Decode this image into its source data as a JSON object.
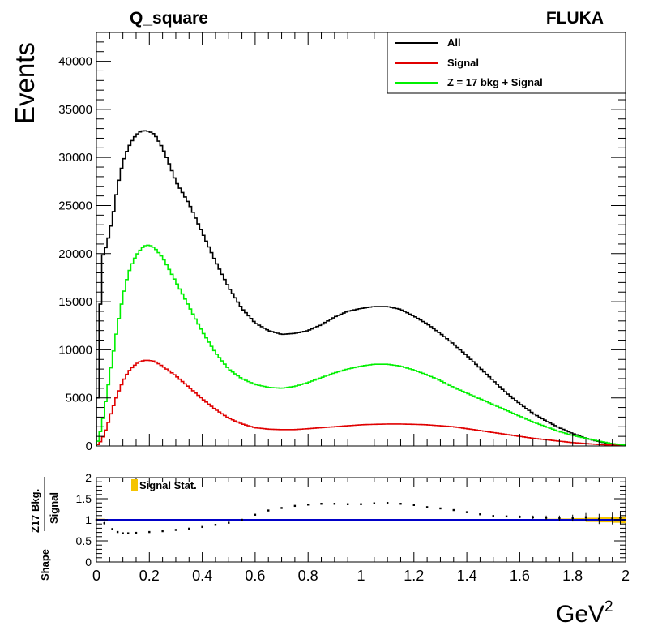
{
  "title": "Q_square",
  "generator_label": "FLUKA",
  "chart_data": [
    {
      "type": "line",
      "style": "step histogram",
      "xlabel": "GeV",
      "xlabel_superscript": "2",
      "ylabel": "Events",
      "xlim": [
        0,
        2
      ],
      "ylim": [
        0,
        43000
      ],
      "x_ticks": [
        0,
        0.2,
        0.4,
        0.6,
        0.8,
        1,
        1.2,
        1.4,
        1.6,
        1.8,
        2
      ],
      "x_tick_labels": [
        "0",
        "0.2",
        "0.4",
        "0.6",
        "0.8",
        "1",
        "1.2",
        "1.4",
        "1.6",
        "1.8",
        "2"
      ],
      "y_ticks": [
        0,
        5000,
        10000,
        15000,
        20000,
        25000,
        30000,
        35000,
        40000
      ],
      "y_tick_labels": [
        "0",
        "5000",
        "10000",
        "15000",
        "20000",
        "25000",
        "30000",
        "35000",
        "40000"
      ],
      "legend_position": "top-right",
      "grid": false,
      "series": [
        {
          "name": "All",
          "color": "#000000",
          "x": [
            0,
            0.01,
            0.02,
            0.04,
            0.06,
            0.08,
            0.1,
            0.12,
            0.14,
            0.16,
            0.18,
            0.2,
            0.22,
            0.25,
            0.28,
            0.3,
            0.35,
            0.4,
            0.45,
            0.5,
            0.55,
            0.6,
            0.65,
            0.7,
            0.75,
            0.8,
            0.85,
            0.9,
            0.95,
            1.0,
            1.05,
            1.1,
            1.15,
            1.2,
            1.25,
            1.3,
            1.35,
            1.4,
            1.45,
            1.5,
            1.55,
            1.6,
            1.65,
            1.7,
            1.75,
            1.8,
            1.85,
            1.9,
            1.95,
            2.0
          ],
          "y": [
            0,
            10000,
            19500,
            21000,
            23500,
            27000,
            29500,
            31000,
            32000,
            32600,
            32800,
            32700,
            32400,
            31000,
            29000,
            27500,
            25200,
            22200,
            19200,
            16500,
            14300,
            12800,
            12000,
            11600,
            11700,
            12000,
            12600,
            13400,
            14000,
            14300,
            14500,
            14500,
            14200,
            13500,
            12700,
            11700,
            10600,
            9400,
            8100,
            6800,
            5500,
            4400,
            3400,
            2600,
            1900,
            1300,
            800,
            450,
            200,
            60
          ]
        },
        {
          "name": "Signal",
          "color": "#e00000",
          "x": [
            0,
            0.02,
            0.04,
            0.06,
            0.08,
            0.1,
            0.12,
            0.14,
            0.16,
            0.18,
            0.2,
            0.22,
            0.25,
            0.3,
            0.35,
            0.4,
            0.45,
            0.5,
            0.55,
            0.6,
            0.65,
            0.7,
            0.75,
            0.8,
            0.85,
            0.9,
            0.95,
            1.0,
            1.05,
            1.1,
            1.15,
            1.2,
            1.25,
            1.3,
            1.35,
            1.4,
            1.45,
            1.5,
            1.55,
            1.6,
            1.65,
            1.7,
            1.75,
            1.8,
            1.85,
            1.9,
            1.95,
            2.0
          ],
          "y": [
            0,
            600,
            2000,
            3800,
            5400,
            6700,
            7700,
            8300,
            8700,
            8900,
            8900,
            8800,
            8300,
            7300,
            6100,
            4900,
            3800,
            2900,
            2300,
            1900,
            1750,
            1700,
            1700,
            1800,
            1900,
            2000,
            2100,
            2200,
            2250,
            2280,
            2280,
            2250,
            2200,
            2100,
            2000,
            1800,
            1600,
            1400,
            1200,
            1000,
            800,
            650,
            500,
            350,
            250,
            150,
            80,
            30
          ]
        },
        {
          "name": "Z = 17 bkg + Signal",
          "color": "#00f000",
          "x": [
            0,
            0.02,
            0.04,
            0.06,
            0.08,
            0.1,
            0.12,
            0.14,
            0.16,
            0.18,
            0.2,
            0.22,
            0.25,
            0.3,
            0.35,
            0.4,
            0.45,
            0.5,
            0.55,
            0.6,
            0.65,
            0.7,
            0.75,
            0.8,
            0.85,
            0.9,
            0.95,
            1.0,
            1.05,
            1.1,
            1.15,
            1.2,
            1.25,
            1.3,
            1.35,
            1.4,
            1.45,
            1.5,
            1.55,
            1.6,
            1.65,
            1.7,
            1.75,
            1.8,
            1.85,
            1.9,
            1.95,
            2.0
          ],
          "y": [
            0,
            2000,
            5500,
            9000,
            12500,
            15500,
            17900,
            19300,
            20200,
            20800,
            20900,
            20600,
            19600,
            17100,
            14500,
            11900,
            9700,
            8000,
            7000,
            6400,
            6100,
            6000,
            6200,
            6600,
            7100,
            7600,
            8000,
            8300,
            8500,
            8500,
            8300,
            7900,
            7400,
            6800,
            6100,
            5500,
            4900,
            4300,
            3700,
            3100,
            2500,
            2000,
            1500,
            1100,
            800,
            500,
            250,
            80
          ]
        }
      ]
    },
    {
      "type": "scatter",
      "style": "ratio points with error bars",
      "ylabel_lines": [
        "Shape",
        "Z17 Bkg.",
        "Signal"
      ],
      "xlim": [
        0,
        2
      ],
      "ylim": [
        0,
        2
      ],
      "x_ticks": [
        0,
        0.2,
        0.4,
        0.6,
        0.8,
        1,
        1.2,
        1.4,
        1.6,
        1.8,
        2
      ],
      "y_ticks": [
        0,
        0.5,
        1,
        1.5,
        2
      ],
      "y_tick_labels": [
        "0",
        "0.5",
        "1",
        "1.5",
        "2"
      ],
      "reference_line": 1,
      "reference_color": "#0000c8",
      "band_color": "#f5c400",
      "legend": {
        "label": "Signal Stat.",
        "color": "#f5c400"
      },
      "series": [
        {
          "name": "",
          "x": [
            0.0,
            0.03,
            0.06,
            0.08,
            0.1,
            0.12,
            0.15,
            0.2,
            0.25,
            0.3,
            0.35,
            0.4,
            0.45,
            0.5,
            0.55,
            0.6,
            0.65,
            0.7,
            0.75,
            0.8,
            0.85,
            0.9,
            0.95,
            1.0,
            1.05,
            1.1,
            1.15,
            1.2,
            1.25,
            1.3,
            1.35,
            1.4,
            1.45,
            1.5,
            1.55,
            1.6,
            1.65,
            1.7,
            1.75,
            1.8,
            1.85,
            1.9,
            1.95,
            1.98
          ],
          "y": [
            1.0,
            0.92,
            0.78,
            0.71,
            0.68,
            0.68,
            0.69,
            0.71,
            0.73,
            0.76,
            0.79,
            0.83,
            0.88,
            0.93,
            1.0,
            1.12,
            1.22,
            1.28,
            1.33,
            1.36,
            1.38,
            1.38,
            1.37,
            1.37,
            1.39,
            1.4,
            1.38,
            1.35,
            1.3,
            1.27,
            1.23,
            1.18,
            1.13,
            1.09,
            1.08,
            1.07,
            1.06,
            1.05,
            1.04,
            1.04,
            1.06,
            1.02,
            1.03,
            1.05
          ],
          "err": [
            0.05,
            0.03,
            0.02,
            0.01,
            0.01,
            0.01,
            0.01,
            0.01,
            0.01,
            0.01,
            0.01,
            0.01,
            0.01,
            0.01,
            0.01,
            0.01,
            0.01,
            0.01,
            0.01,
            0.01,
            0.01,
            0.01,
            0.01,
            0.01,
            0.01,
            0.01,
            0.01,
            0.01,
            0.01,
            0.01,
            0.01,
            0.01,
            0.01,
            0.02,
            0.02,
            0.03,
            0.04,
            0.05,
            0.06,
            0.08,
            0.1,
            0.12,
            0.14,
            0.16
          ]
        }
      ]
    }
  ]
}
